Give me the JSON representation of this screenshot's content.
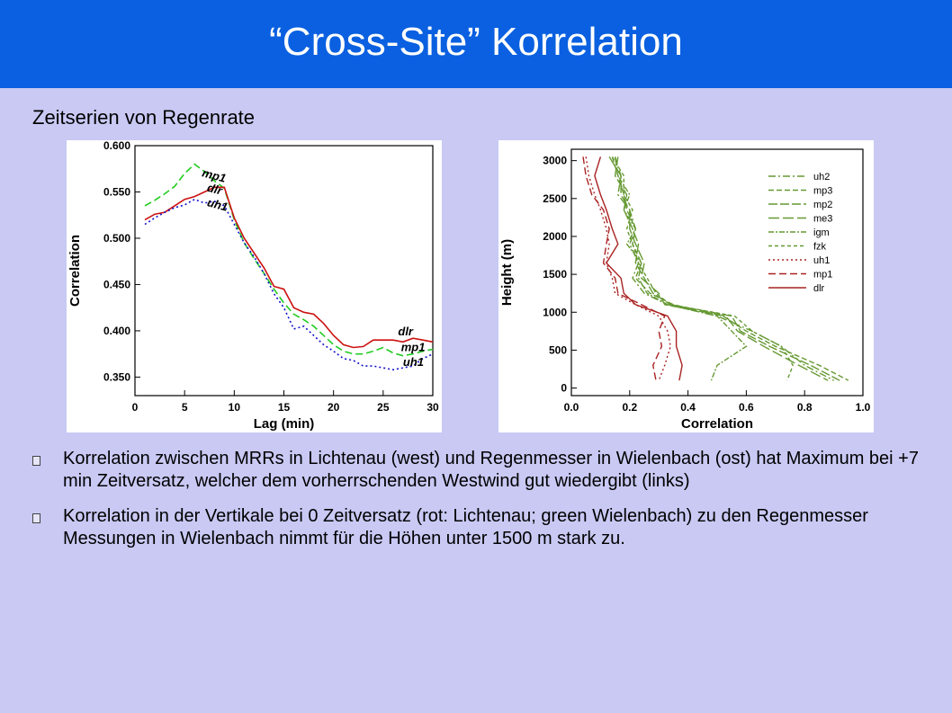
{
  "header": {
    "title": "“Cross-Site” Korrelation"
  },
  "section": {
    "subtitle": "Zeitserien von Regenrate"
  },
  "bullets": [
    "Korrelation zwischen MRRs in Lichtenau (west) und Regenmesser in Wielenbach (ost) hat Maximum bei +7 min Zeitversatz, welcher dem vorherrschenden Westwind gut wiedergibt (links)",
    "Korrelation in der Vertikale bei 0 Zeitversatz (rot: Lichtenau; green Wielenbach) zu den Regenmesser Messungen in Wielenbach nimmt für die Höhen unter 1500 m stark zu."
  ],
  "colors": {
    "title_bar": "#0a60e0",
    "background": "#c9c9f4",
    "red": "#cc1111",
    "green": "#22cc22",
    "blue": "#1111cc",
    "dark_green": "#669933",
    "dark_red": "#aa2222"
  },
  "chart_data": [
    {
      "type": "line",
      "xlabel": "Lag (min)",
      "ylabel": "Correlation",
      "xlim": [
        0,
        30
      ],
      "ylim": [
        0.33,
        0.6
      ],
      "xticks": [
        "0",
        "5",
        "10",
        "15",
        "20",
        "25",
        "30"
      ],
      "yticks": [
        "0.350",
        "0.400",
        "0.450",
        "0.500",
        "0.550",
        "0.600"
      ],
      "series": [
        {
          "name": "mp1",
          "color": "#22cc22",
          "dash": "8,4",
          "x": [
            1,
            2,
            3,
            4,
            5,
            6,
            7,
            8,
            9,
            10,
            11,
            12,
            13,
            14,
            15,
            16,
            17,
            18,
            19,
            20,
            21,
            22,
            23,
            24,
            25,
            26,
            27,
            28,
            29,
            30
          ],
          "values": [
            0.535,
            0.541,
            0.548,
            0.556,
            0.57,
            0.58,
            0.572,
            0.562,
            0.554,
            0.52,
            0.495,
            0.478,
            0.462,
            0.445,
            0.43,
            0.418,
            0.412,
            0.405,
            0.395,
            0.385,
            0.378,
            0.375,
            0.375,
            0.378,
            0.382,
            0.376,
            0.373,
            0.375,
            0.378,
            0.38
          ]
        },
        {
          "name": "dlr",
          "color": "#cc1111",
          "dash": "",
          "x": [
            1,
            2,
            3,
            4,
            5,
            6,
            7,
            8,
            9,
            10,
            11,
            12,
            13,
            14,
            15,
            16,
            17,
            18,
            19,
            20,
            21,
            22,
            23,
            24,
            25,
            26,
            27,
            28,
            29,
            30
          ],
          "values": [
            0.52,
            0.526,
            0.528,
            0.535,
            0.542,
            0.545,
            0.55,
            0.555,
            0.555,
            0.522,
            0.5,
            0.484,
            0.468,
            0.448,
            0.445,
            0.425,
            0.42,
            0.418,
            0.408,
            0.395,
            0.385,
            0.382,
            0.383,
            0.39,
            0.39,
            0.39,
            0.388,
            0.392,
            0.39,
            0.388
          ]
        },
        {
          "name": "uh1",
          "color": "#1111cc",
          "dash": "2,3",
          "x": [
            1,
            2,
            3,
            4,
            5,
            6,
            7,
            8,
            9,
            10,
            11,
            12,
            13,
            14,
            15,
            16,
            17,
            18,
            19,
            20,
            21,
            22,
            23,
            24,
            25,
            26,
            27,
            28,
            29,
            30
          ],
          "values": [
            0.515,
            0.522,
            0.528,
            0.533,
            0.536,
            0.542,
            0.538,
            0.54,
            0.535,
            0.515,
            0.495,
            0.48,
            0.462,
            0.44,
            0.425,
            0.402,
            0.405,
            0.395,
            0.385,
            0.378,
            0.37,
            0.368,
            0.362,
            0.362,
            0.36,
            0.358,
            0.36,
            0.362,
            0.37,
            0.375
          ]
        }
      ]
    },
    {
      "type": "line",
      "xlabel": "Correlation",
      "ylabel": "Height (m)",
      "xlim": [
        0,
        1.0
      ],
      "ylim": [
        -100,
        3150
      ],
      "xticks": [
        "0.0",
        "0.2",
        "0.4",
        "0.6",
        "0.8",
        "1.0"
      ],
      "yticks": [
        "0",
        "500",
        "1000",
        "1500",
        "2000",
        "2500",
        "3000"
      ],
      "legend_position": "top-right",
      "series": [
        {
          "name": "uh2",
          "color": "#669933",
          "dash": "8,3,2,3",
          "x": [
            0.15,
            0.17,
            0.16,
            0.2,
            0.22,
            0.2,
            0.23,
            0.21,
            0.25,
            0.33,
            0.5,
            0.62,
            0.72,
            0.8,
            0.9
          ],
          "values": [
            3050,
            2800,
            2550,
            2350,
            2100,
            1900,
            1650,
            1450,
            1250,
            1100,
            950,
            750,
            550,
            300,
            100
          ]
        },
        {
          "name": "mp3",
          "color": "#669933",
          "dash": "6,3",
          "x": [
            0.14,
            0.16,
            0.18,
            0.19,
            0.22,
            0.21,
            0.24,
            0.22,
            0.27,
            0.35,
            0.52,
            0.6,
            0.7,
            0.85,
            0.95
          ],
          "values": [
            3050,
            2800,
            2550,
            2350,
            2100,
            1900,
            1650,
            1450,
            1250,
            1100,
            950,
            750,
            550,
            300,
            100
          ]
        },
        {
          "name": "mp2",
          "color": "#669933",
          "dash": "10,3",
          "x": [
            0.16,
            0.15,
            0.19,
            0.18,
            0.21,
            0.23,
            0.22,
            0.25,
            0.28,
            0.34,
            0.55,
            0.58,
            0.68,
            0.82,
            0.92
          ],
          "values": [
            3050,
            2800,
            2550,
            2350,
            2100,
            1900,
            1650,
            1450,
            1250,
            1100,
            950,
            750,
            550,
            300,
            100
          ]
        },
        {
          "name": "me3",
          "color": "#669933",
          "dash": "12,4",
          "x": [
            0.13,
            0.17,
            0.17,
            0.2,
            0.2,
            0.22,
            0.25,
            0.24,
            0.3,
            0.32,
            0.53,
            0.57,
            0.66,
            0.78,
            0.88
          ],
          "values": [
            3050,
            2800,
            2550,
            2350,
            2100,
            1900,
            1650,
            1450,
            1250,
            1100,
            950,
            750,
            550,
            300,
            100
          ]
        },
        {
          "name": "igm",
          "color": "#669933",
          "dash": "6,2,2,2",
          "x": [
            0.15,
            0.16,
            0.2,
            0.18,
            0.22,
            0.19,
            0.24,
            0.23,
            0.26,
            0.33,
            0.5,
            0.55,
            0.6,
            0.5,
            0.48
          ],
          "values": [
            3050,
            2800,
            2550,
            2350,
            2100,
            1900,
            1650,
            1450,
            1250,
            1100,
            950,
            750,
            550,
            300,
            100
          ]
        },
        {
          "name": "fzk",
          "color": "#669933",
          "dash": "4,3",
          "x": [
            0.14,
            0.18,
            0.18,
            0.21,
            0.19,
            0.21,
            0.23,
            0.26,
            0.29,
            0.34,
            0.56,
            0.62,
            0.72,
            0.76,
            0.74
          ],
          "values": [
            3050,
            2800,
            2550,
            2350,
            2100,
            1900,
            1650,
            1450,
            1250,
            1100,
            950,
            750,
            550,
            300,
            100
          ]
        },
        {
          "name": "uh1",
          "color": "#aa2222",
          "dash": "2,3",
          "x": [
            0.05,
            0.06,
            0.08,
            0.1,
            0.12,
            0.13,
            0.12,
            0.14,
            0.15,
            0.22,
            0.3,
            0.33,
            0.34,
            0.32,
            0.3
          ],
          "values": [
            3050,
            2800,
            2550,
            2350,
            2100,
            1900,
            1650,
            1450,
            1250,
            1100,
            950,
            750,
            550,
            300,
            100
          ]
        },
        {
          "name": "mp1",
          "color": "#aa2222",
          "dash": "8,4",
          "x": [
            0.04,
            0.05,
            0.07,
            0.11,
            0.13,
            0.12,
            0.11,
            0.15,
            0.16,
            0.24,
            0.32,
            0.3,
            0.31,
            0.28,
            0.29
          ],
          "values": [
            3050,
            2800,
            2550,
            2350,
            2100,
            1900,
            1650,
            1450,
            1250,
            1100,
            950,
            750,
            550,
            300,
            100
          ]
        },
        {
          "name": "dlr",
          "color": "#aa2222",
          "dash": "",
          "x": [
            0.1,
            0.08,
            0.1,
            0.12,
            0.14,
            0.16,
            0.12,
            0.17,
            0.18,
            0.22,
            0.33,
            0.36,
            0.36,
            0.38,
            0.37
          ],
          "values": [
            3050,
            2800,
            2550,
            2350,
            2100,
            1900,
            1650,
            1450,
            1250,
            1100,
            950,
            750,
            550,
            300,
            100
          ]
        }
      ]
    }
  ]
}
